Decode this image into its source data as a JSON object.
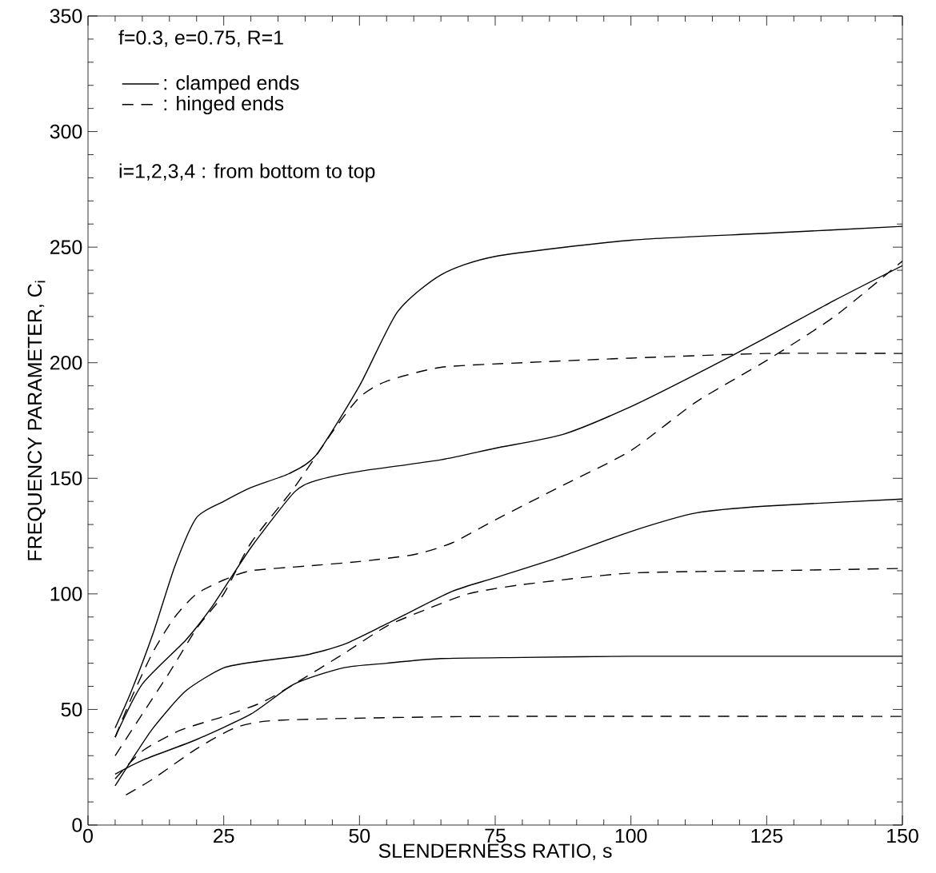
{
  "chart_data": {
    "type": "line",
    "xlabel": "SLENDERNESS RATIO, s",
    "ylabel": "FREQUENCY PARAMETER, C$_{i}$",
    "xlim": [
      0,
      150
    ],
    "ylim": [
      0,
      350
    ],
    "xticks": [
      0,
      25,
      50,
      75,
      100,
      125,
      150
    ],
    "yticks": [
      0,
      50,
      100,
      150,
      200,
      250,
      300,
      350
    ],
    "grid": false,
    "legend": "top left",
    "marker": "none",
    "annotations": [
      "f=0.3,  e=0.75,  R=1",
      "i=1,2,3,4 : from bottom to top"
    ],
    "series": [
      {
        "name": ": clamped ends",
        "color": "#000000",
        "line_style": "solid",
        "x": [
          5,
          10,
          20,
          30,
          38,
          47,
          55,
          65,
          80,
          100,
          125,
          150
        ],
        "values": [
          22,
          28,
          37,
          48,
          61,
          68,
          70,
          72,
          72.5,
          73,
          73,
          73
        ]
      },
      {
        "color": "#000000",
        "line_style": "solid",
        "x": [
          5,
          8,
          12,
          18,
          25,
          32,
          40,
          47,
          55,
          67,
          75,
          87,
          100,
          112,
          125,
          150
        ],
        "values": [
          17,
          28,
          42,
          58,
          68,
          71,
          73.5,
          78,
          87,
          101,
          107,
          116,
          127,
          135,
          138,
          141
        ]
      },
      {
        "color": "#000000",
        "line_style": "solid",
        "x": [
          5,
          10,
          18,
          23,
          30,
          38,
          42,
          50,
          65,
          75,
          87.5,
          100,
          112,
          125,
          137.5,
          150
        ],
        "values": [
          38,
          61,
          80,
          95,
          120,
          144,
          149,
          153,
          158,
          163,
          169,
          181,
          195,
          211,
          227,
          242
        ]
      },
      {
        "color": "#000000",
        "line_style": "solid",
        "x": [
          5,
          8,
          12,
          16,
          20,
          25,
          30,
          37,
          42,
          50,
          57,
          65,
          75,
          100,
          125,
          150
        ],
        "values": [
          42,
          58,
          83,
          112,
          133,
          140,
          146,
          152,
          160,
          190,
          222,
          238,
          246,
          253,
          256,
          259
        ]
      },
      {
        "name": ": hinged ends",
        "color": "#000000",
        "line_style": "dashed",
        "x": [
          7,
          12,
          20,
          27,
          33,
          45,
          75,
          150
        ],
        "values": [
          13,
          20,
          33,
          42,
          45,
          46,
          47,
          47
        ]
      },
      {
        "color": "#000000",
        "line_style": "dashed",
        "x": [
          5,
          10,
          17,
          25,
          32,
          38,
          47,
          55,
          62,
          70,
          80,
          100,
          125,
          150
        ],
        "values": [
          20,
          32,
          41,
          47,
          53,
          61,
          74,
          86,
          93,
          100,
          104,
          109,
          110,
          111
        ]
      },
      {
        "color": "#000000",
        "line_style": "dashed",
        "x": [
          5,
          10,
          15,
          20,
          25,
          30,
          38,
          45,
          50,
          55,
          65,
          80,
          100,
          125,
          150
        ],
        "values": [
          30,
          48,
          66,
          85,
          100,
          122,
          146,
          170,
          185,
          192,
          198,
          200,
          202,
          204,
          204
        ]
      },
      {
        "color": "#000000",
        "line_style": "dashed",
        "x": [
          5,
          8,
          12,
          16,
          20,
          25,
          30,
          40,
          50,
          60,
          67,
          75,
          87.5,
          100,
          112,
          125,
          137.5,
          150
        ],
        "values": [
          38,
          55,
          75,
          90,
          100,
          106,
          110,
          112,
          114,
          117,
          122,
          132,
          147,
          162,
          183,
          201,
          220,
          244
        ]
      }
    ]
  }
}
